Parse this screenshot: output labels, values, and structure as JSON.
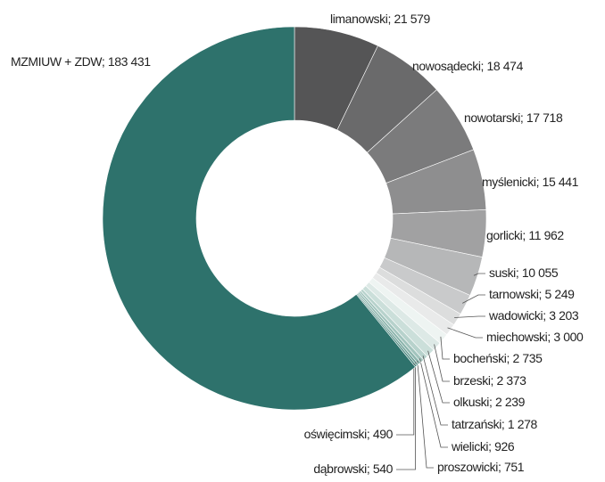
{
  "chart_data": {
    "type": "donut",
    "categories": [
      "limanowski",
      "nowosądecki",
      "nowotarski",
      "myślenicki",
      "gorlicki",
      "suski",
      "tarnowski",
      "wadowicki",
      "miechowski",
      "bocheński",
      "brzeski",
      "olkuski",
      "tatrzański",
      "wielicki",
      "proszowicki",
      "dąbrowski",
      "oświęcimski",
      "MZMIUW + ZDW"
    ],
    "values": [
      21579,
      18474,
      17718,
      15441,
      11962,
      10055,
      5249,
      3203,
      3000,
      2735,
      2373,
      2239,
      1278,
      926,
      751,
      540,
      490,
      183431
    ],
    "value_labels": [
      "21 579",
      "18 474",
      "17 718",
      "15 441",
      "11 962",
      "10 055",
      "5 249",
      "3 203",
      "3 000",
      "2 735",
      "2 373",
      "2 239",
      "1 278",
      "926",
      "751",
      "540",
      "490",
      "183 431"
    ],
    "colors": [
      "#555556",
      "#6a6a6b",
      "#7b7b7c",
      "#8e8e8f",
      "#a1a1a2",
      "#b6b7b8",
      "#c9cacb",
      "#dcdddd",
      "#e9eaea",
      "#eef4f2",
      "#dde9e6",
      "#cbdfda",
      "#b7d2cc",
      "#a2c4bd",
      "#8cb5ad",
      "#6e9f97",
      "#4f8a82",
      "#2e726c"
    ]
  }
}
